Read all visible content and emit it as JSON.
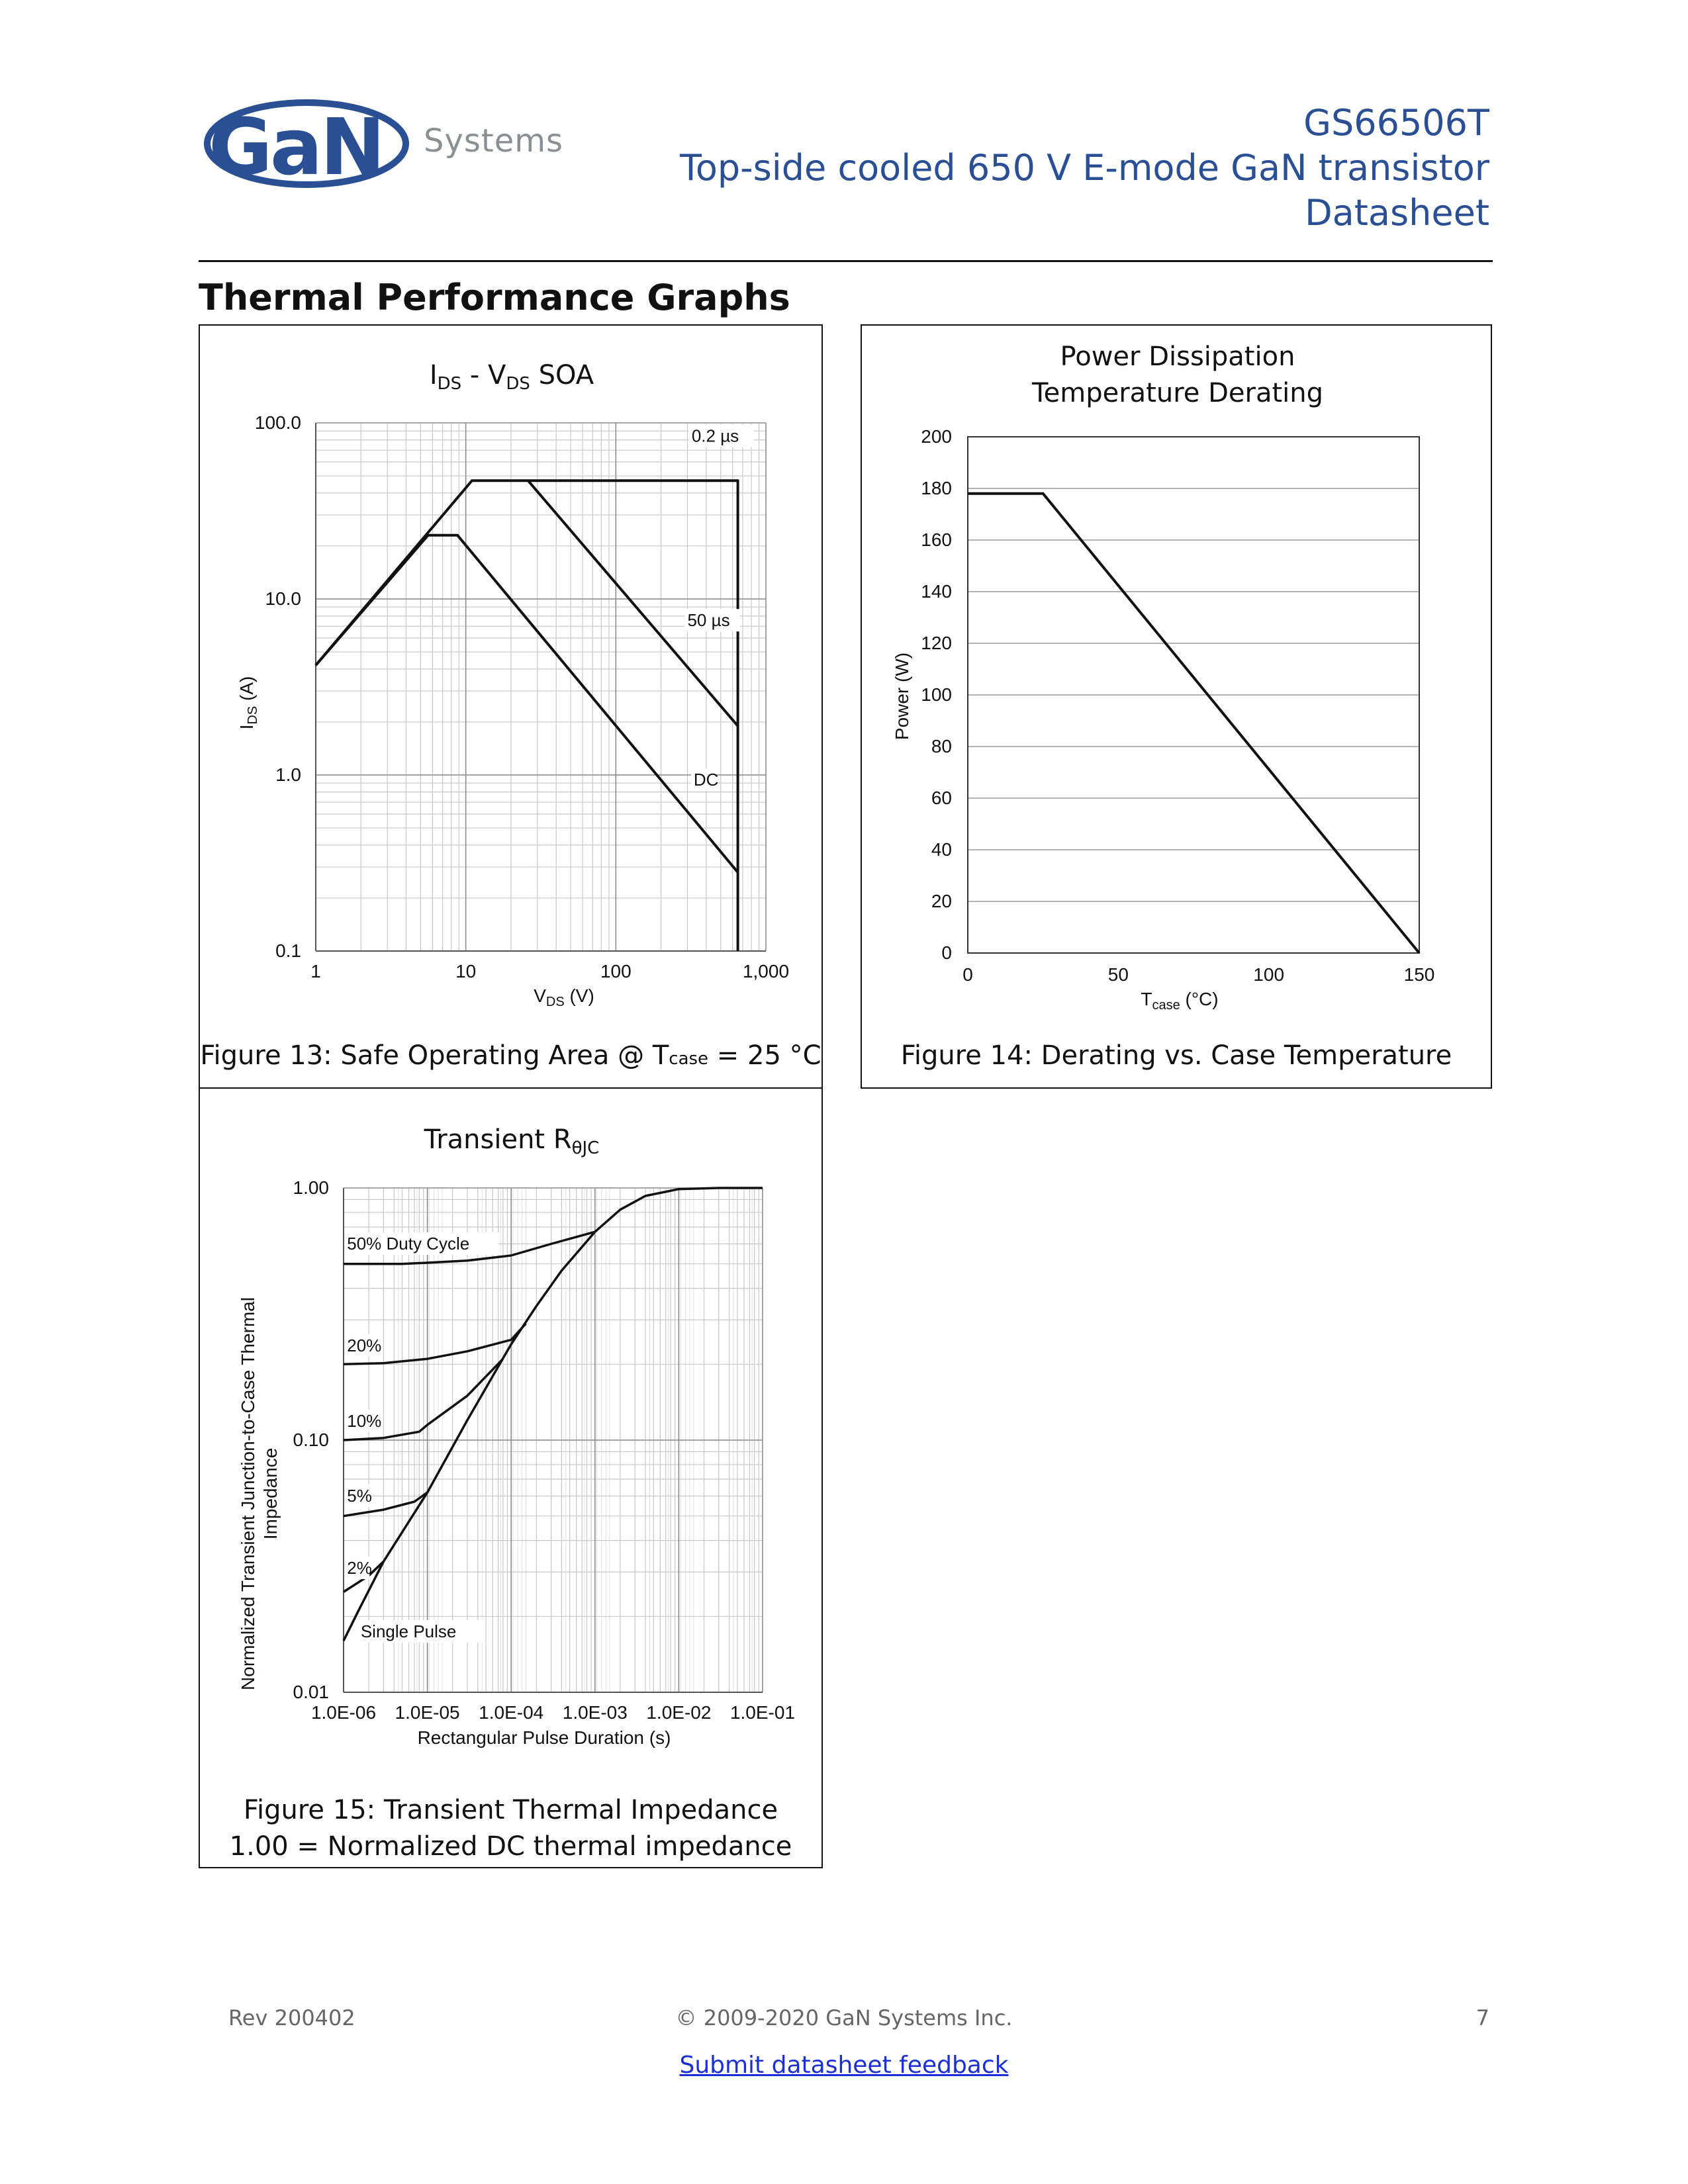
{
  "header": {
    "logo_text": "GaN",
    "logo_sub": "Systems",
    "part_number": "GS66506T",
    "subtitle": "Top-side cooled 650 V E-mode GaN transistor",
    "doc_type": "Datasheet",
    "logo_color": "#2a4f94"
  },
  "section_title": "Thermal Performance Graphs",
  "fig13": {
    "title_main": "I",
    "title_sub1": "DS",
    "title_mid": " - V",
    "title_sub2": "DS",
    "title_end": " SOA",
    "caption_pre": "Figure 13: Safe Operating Area @ T",
    "caption_sub": "case",
    "caption_post": " = 25 °C"
  },
  "fig14": {
    "caption": "Figure 14: Derating vs. Case Temperature"
  },
  "fig15": {
    "caption_line1": "Figure 15: Transient Thermal Impedance",
    "caption_line2": "1.00 = Normalized DC thermal impedance"
  },
  "chart_data": [
    {
      "id": "fig13",
      "type": "line",
      "title": "IDS - VDS SOA",
      "xlabel_main": "V",
      "xlabel_sub": "DS",
      "xlabel_end": " (V)",
      "ylabel_main": "I",
      "ylabel_sub": "DS",
      "ylabel_end": " (A)",
      "xscale": "log",
      "yscale": "log",
      "xlim": [
        1,
        1000
      ],
      "ylim": [
        0.1,
        100
      ],
      "xticks": [
        1,
        10,
        100,
        1000
      ],
      "xtick_labels": [
        "1",
        "10",
        "100",
        "1,000"
      ],
      "yticks": [
        0.1,
        1,
        10,
        100
      ],
      "ytick_labels": [
        "0.1",
        "1.0",
        "10.0",
        "100.0"
      ],
      "grid": true,
      "series": [
        {
          "name": "0.2 µs",
          "label_at": [
            320,
            78
          ],
          "points": [
            [
              1,
              4.2
            ],
            [
              11,
              47
            ],
            [
              650,
              47
            ],
            [
              650,
              0.1
            ]
          ]
        },
        {
          "name": "50 µs",
          "label_at": [
            300,
            7
          ],
          "points": [
            [
              26,
              47
            ],
            [
              650,
              1.9
            ]
          ]
        },
        {
          "name": "DC",
          "label_at": [
            330,
            0.87
          ],
          "points": [
            [
              1,
              4.2
            ],
            [
              5.6,
              23
            ],
            [
              8.8,
              23
            ],
            [
              650,
              0.28
            ]
          ]
        }
      ]
    },
    {
      "id": "fig14",
      "type": "line",
      "title_line1": "Power Dissipation",
      "title_line2": "Temperature Derating",
      "xlabel_main": "T",
      "xlabel_sub": "case",
      "xlabel_end": " (°C)",
      "ylabel": "Power  (W)",
      "xlim": [
        0,
        150
      ],
      "ylim": [
        0,
        200
      ],
      "xticks": [
        0,
        50,
        100,
        150
      ],
      "yticks": [
        0,
        20,
        40,
        60,
        80,
        100,
        120,
        140,
        160,
        180,
        200
      ],
      "grid": true,
      "series": [
        {
          "points": [
            [
              0,
              178
            ],
            [
              25,
              178
            ],
            [
              150,
              0
            ]
          ]
        }
      ]
    },
    {
      "id": "fig15",
      "type": "line",
      "title_main": "Transient R",
      "title_sub": "θJC",
      "xlabel": "Rectangular Pulse Duration (s)",
      "ylabel_line1": "Normalized Transient Junction-to-Case Thermal",
      "ylabel_line2": "Impedance",
      "xscale": "log",
      "yscale": "log",
      "xlim": [
        1e-06,
        0.1
      ],
      "ylim": [
        0.01,
        1
      ],
      "xticks": [
        1e-06,
        1e-05,
        0.0001,
        0.001,
        0.01,
        0.1
      ],
      "xtick_labels": [
        "1.0E-06",
        "1.0E-05",
        "1.0E-04",
        "1.0E-03",
        "1.0E-02",
        "1.0E-01"
      ],
      "yticks": [
        0.01,
        0.1,
        1
      ],
      "ytick_labels": [
        "0.01",
        "0.10",
        "1.00"
      ],
      "grid": true,
      "series": [
        {
          "name": "50%  Duty Cycle",
          "label_at": [
            1.1e-06,
            0.57
          ],
          "points": [
            [
              1e-06,
              0.5
            ],
            [
              5e-06,
              0.5
            ],
            [
              1e-05,
              0.505
            ],
            [
              3e-05,
              0.515
            ],
            [
              0.0001,
              0.54
            ],
            [
              0.0003,
              0.6
            ],
            [
              0.001,
              0.67
            ]
          ]
        },
        {
          "name": "20%",
          "label_at": [
            1.1e-06,
            0.225
          ],
          "points": [
            [
              1e-06,
              0.2
            ],
            [
              3e-06,
              0.202
            ],
            [
              1e-05,
              0.21
            ],
            [
              3e-05,
              0.225
            ],
            [
              0.0001,
              0.25
            ],
            [
              0.00015,
              0.29
            ]
          ]
        },
        {
          "name": "10%",
          "label_at": [
            1.1e-06,
            0.113
          ],
          "points": [
            [
              1e-06,
              0.1
            ],
            [
              3e-06,
              0.102
            ],
            [
              8e-06,
              0.108
            ],
            [
              1e-05,
              0.115
            ],
            [
              3e-05,
              0.15
            ],
            [
              8e-05,
              0.21
            ]
          ]
        },
        {
          "name": "5%",
          "label_at": [
            1.1e-06,
            0.057
          ],
          "points": [
            [
              1e-06,
              0.05
            ],
            [
              3e-06,
              0.053
            ],
            [
              7e-06,
              0.057
            ],
            [
              1e-05,
              0.062
            ]
          ]
        },
        {
          "name": "2%",
          "label_at": [
            1.1e-06,
            0.0295
          ],
          "points": [
            [
              1e-06,
              0.025
            ],
            [
              2e-06,
              0.029
            ],
            [
              3e-06,
              0.033
            ]
          ]
        },
        {
          "name": "Single Pulse",
          "label_at": [
            1.6e-06,
            0.0165
          ],
          "points": [
            [
              1e-06,
              0.016
            ],
            [
              1.5e-06,
              0.021
            ],
            [
              3e-06,
              0.033
            ],
            [
              1e-05,
              0.062
            ],
            [
              3e-05,
              0.12
            ],
            [
              0.0001,
              0.24
            ],
            [
              0.0002,
              0.34
            ],
            [
              0.0004,
              0.47
            ],
            [
              0.001,
              0.67
            ],
            [
              0.002,
              0.82
            ],
            [
              0.004,
              0.93
            ],
            [
              0.01,
              0.99
            ],
            [
              0.03,
              1.0
            ],
            [
              0.1,
              1.0
            ]
          ]
        }
      ]
    }
  ],
  "footer": {
    "rev": "Rev 200402",
    "copyright": "© 2009-2020 GaN Systems Inc.",
    "page": "7",
    "feedback_link": "Submit datasheet feedback"
  }
}
